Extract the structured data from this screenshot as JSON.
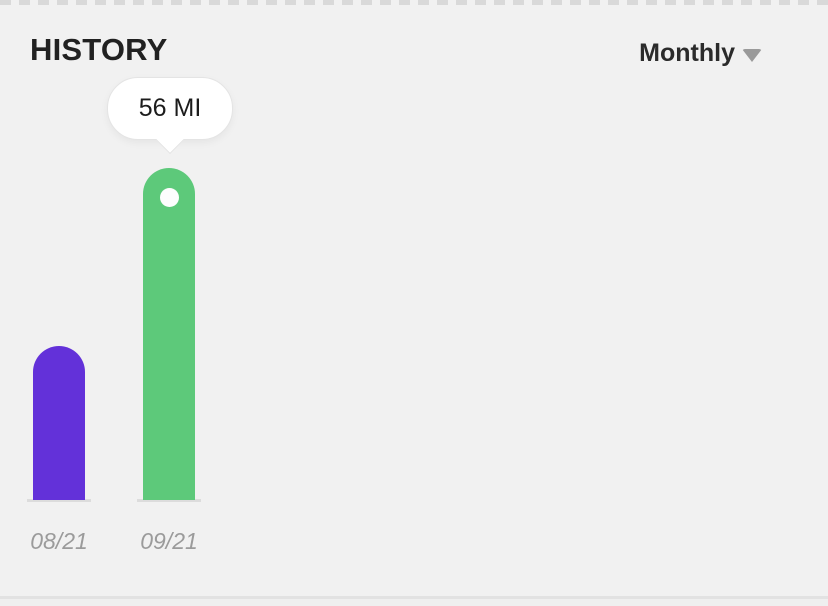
{
  "header": {
    "title": "HISTORY",
    "period_selector": {
      "label": "Monthly",
      "icon": "chevron-down"
    }
  },
  "tooltip": {
    "text": "56 MI"
  },
  "chart_data": {
    "type": "bar",
    "title": "HISTORY",
    "categories": [
      "08/21",
      "09/21"
    ],
    "values": [
      26,
      56
    ],
    "unit": "MI",
    "xlabel": "",
    "ylabel": "",
    "ylim": [
      0,
      56
    ],
    "grid": false,
    "legend": "none",
    "bar_colors": [
      "#6331d9",
      "#5dc97a"
    ],
    "selected_index": 1,
    "selected_value_label": "56 MI",
    "notes": "value for 08/21 estimated from bar height; 09/21 labeled 56 MI in tooltip"
  },
  "colors": {
    "background": "#f1f1f1",
    "bar_purple": "#6331d9",
    "bar_green": "#5dc97a",
    "axis_label_gray": "#9b9b9b",
    "title_dark": "#212121",
    "tooltip_border": "#e4e4e4",
    "caret_gray": "#9a9a9a"
  }
}
